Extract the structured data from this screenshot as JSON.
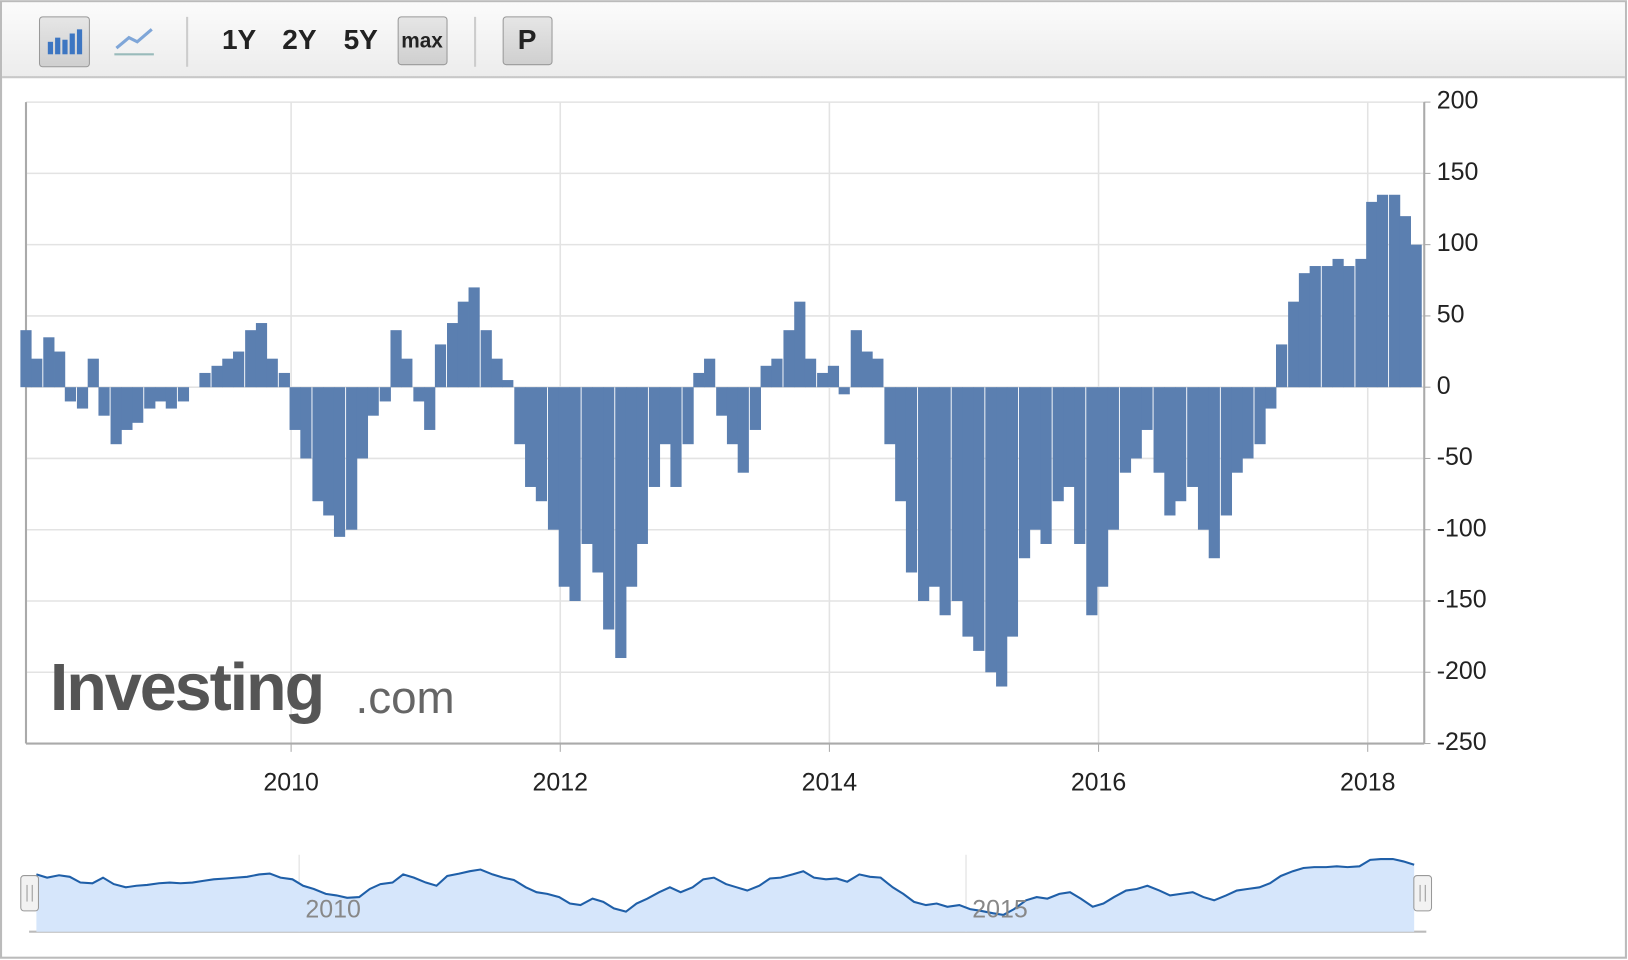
{
  "toolbar": {
    "ranges": [
      "1Y",
      "2Y",
      "5Y",
      "max"
    ],
    "p_button": "P"
  },
  "watermark": {
    "brand": "Investing",
    "suffix": ".com"
  },
  "chart_data": {
    "type": "bar",
    "color": "#5b7fb0",
    "grid": true,
    "x": [
      2008.03,
      2008.11,
      2008.2,
      2008.28,
      2008.36,
      2008.45,
      2008.53,
      2008.61,
      2008.7,
      2008.78,
      2008.86,
      2008.95,
      2009.03,
      2009.11,
      2009.2,
      2009.28,
      2009.36,
      2009.45,
      2009.53,
      2009.61,
      2009.7,
      2009.78,
      2009.86,
      2009.95,
      2010.03,
      2010.11,
      2010.2,
      2010.28,
      2010.36,
      2010.45,
      2010.53,
      2010.61,
      2010.7,
      2010.78,
      2010.86,
      2010.95,
      2011.03,
      2011.11,
      2011.2,
      2011.28,
      2011.36,
      2011.45,
      2011.53,
      2011.61,
      2011.7,
      2011.78,
      2011.86,
      2011.95,
      2012.03,
      2012.11,
      2012.2,
      2012.28,
      2012.36,
      2012.45,
      2012.53,
      2012.61,
      2012.7,
      2012.78,
      2012.86,
      2012.95,
      2013.03,
      2013.11,
      2013.2,
      2013.28,
      2013.36,
      2013.45,
      2013.53,
      2013.61,
      2013.7,
      2013.78,
      2013.86,
      2013.95,
      2014.03,
      2014.11,
      2014.2,
      2014.28,
      2014.36,
      2014.45,
      2014.53,
      2014.61,
      2014.7,
      2014.78,
      2014.86,
      2014.95,
      2015.03,
      2015.11,
      2015.2,
      2015.28,
      2015.36,
      2015.45,
      2015.53,
      2015.61,
      2015.7,
      2015.78,
      2015.86,
      2015.95,
      2016.03,
      2016.11,
      2016.2,
      2016.28,
      2016.36,
      2016.45,
      2016.53,
      2016.61,
      2016.7,
      2016.78,
      2016.86,
      2016.95,
      2017.03,
      2017.11,
      2017.2,
      2017.28,
      2017.36,
      2017.45,
      2017.53,
      2017.61,
      2017.7,
      2017.78,
      2017.86,
      2017.95,
      2018.03,
      2018.11,
      2018.2,
      2018.28,
      2018.36
    ],
    "values": [
      40,
      20,
      35,
      25,
      -10,
      -15,
      20,
      -20,
      -40,
      -30,
      -25,
      -15,
      -10,
      -15,
      -10,
      0,
      10,
      15,
      20,
      25,
      40,
      45,
      20,
      10,
      -30,
      -50,
      -80,
      -90,
      -105,
      -100,
      -50,
      -20,
      -10,
      40,
      20,
      -10,
      -30,
      30,
      45,
      60,
      70,
      40,
      20,
      5,
      -40,
      -70,
      -80,
      -100,
      -140,
      -150,
      -110,
      -130,
      -170,
      -190,
      -140,
      -110,
      -70,
      -40,
      -70,
      -40,
      10,
      20,
      -20,
      -40,
      -60,
      -30,
      15,
      20,
      40,
      60,
      20,
      10,
      15,
      -5,
      40,
      25,
      20,
      -40,
      -80,
      -130,
      -150,
      -140,
      -160,
      -150,
      -175,
      -185,
      -200,
      -210,
      -175,
      -120,
      -100,
      -110,
      -80,
      -70,
      -110,
      -160,
      -140,
      -100,
      -60,
      -50,
      -30,
      -60,
      -90,
      -80,
      -70,
      -100,
      -120,
      -90,
      -60,
      -50,
      -40,
      -15,
      30,
      60,
      80,
      85,
      85,
      90,
      85,
      90,
      130,
      135,
      135,
      120,
      100
    ],
    "xlim": [
      2008.03,
      2018.42
    ],
    "xticks": [
      2010,
      2012,
      2014,
      2016,
      2018
    ],
    "ylim": [
      -250,
      200
    ],
    "yticks": [
      -250,
      -200,
      -150,
      -100,
      -50,
      0,
      50,
      100,
      150,
      200
    ],
    "navigator": {
      "xticks": [
        2010,
        2015
      ],
      "color": "#1f5fa8"
    }
  }
}
